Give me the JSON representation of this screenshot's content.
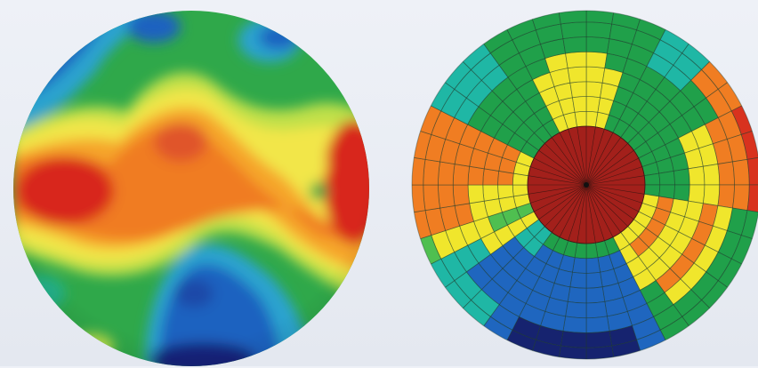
{
  "figure": {
    "panels": [
      {
        "id": "continuous-map",
        "kind": "smooth color contour map (circular wafer)",
        "palette": [
          "#14237a",
          "#1f62c0",
          "#2aa3cf",
          "#22b08a",
          "#2fa84a",
          "#bfe04a",
          "#f2e64a",
          "#f5a52b",
          "#f07b22",
          "#d8261e"
        ]
      },
      {
        "id": "zoned-map",
        "kind": "polar segmented zone map (circular wafer)",
        "palette": {
          "center": "#a3201b",
          "red": "#d8321e",
          "orange": "#f07d22",
          "yellow": "#f0e62c",
          "light_green": "#4fbf50",
          "green": "#20a04a",
          "teal": "#1fb7a5",
          "blue": "#1f66bf",
          "dark_blue": "#16236f"
        },
        "rings": 8,
        "sectors_per_ring": 40
      }
    ]
  }
}
